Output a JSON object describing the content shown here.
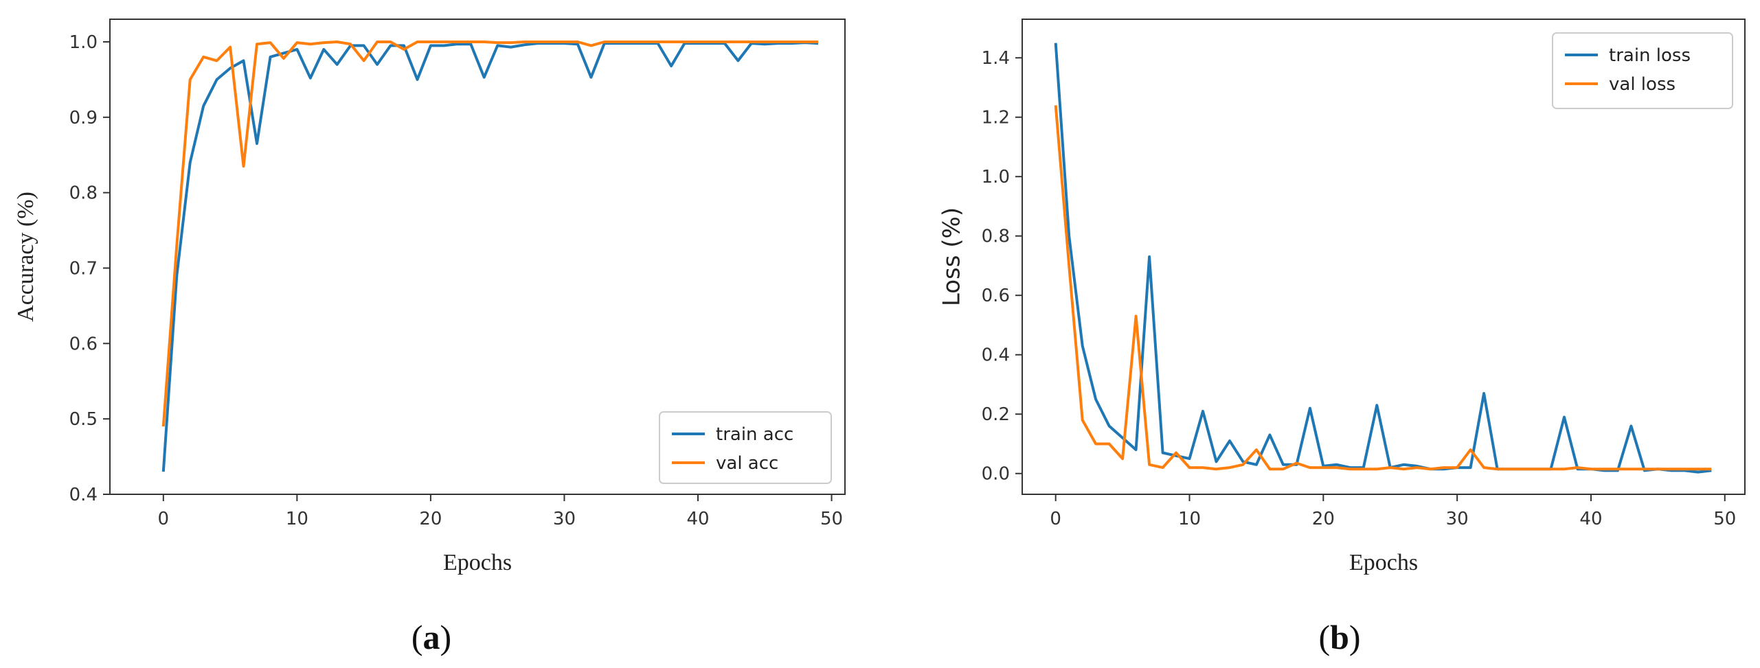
{
  "charts": [
    {
      "panel_label": "(a)",
      "panel_letter": "a",
      "chart_data": {
        "type": "line",
        "title": "",
        "xlabel": "Epochs",
        "ylabel": "Accuracy (%)",
        "xlim": [
          -4,
          51
        ],
        "ylim": [
          0.4,
          1.03
        ],
        "xticks": [
          0,
          10,
          20,
          30,
          40,
          50
        ],
        "yticks": [
          0.4,
          0.5,
          0.6,
          0.7,
          0.8,
          0.9,
          1.0
        ],
        "ytick_labels": [
          "0.4",
          "0.5",
          "0.6",
          "0.7",
          "0.8",
          "0.9",
          "1.0"
        ],
        "grid": false,
        "legend": "lower right",
        "x": [
          0,
          1,
          2,
          3,
          4,
          5,
          6,
          7,
          8,
          9,
          10,
          11,
          12,
          13,
          14,
          15,
          16,
          17,
          18,
          19,
          20,
          21,
          22,
          23,
          24,
          25,
          26,
          27,
          28,
          29,
          30,
          31,
          32,
          33,
          34,
          35,
          36,
          37,
          38,
          39,
          40,
          41,
          42,
          43,
          44,
          45,
          46,
          47,
          48,
          49
        ],
        "series": [
          {
            "name": "train acc",
            "color": "#1f77b4",
            "values": [
              0.43,
              0.69,
              0.84,
              0.915,
              0.95,
              0.965,
              0.975,
              0.865,
              0.98,
              0.985,
              0.99,
              0.952,
              0.99,
              0.97,
              0.995,
              0.995,
              0.97,
              0.995,
              0.995,
              0.95,
              0.995,
              0.995,
              0.997,
              0.997,
              0.953,
              0.995,
              0.993,
              0.996,
              0.998,
              0.998,
              0.998,
              0.997,
              0.953,
              0.998,
              0.998,
              0.998,
              0.998,
              0.998,
              0.968,
              0.998,
              0.998,
              0.998,
              0.998,
              0.975,
              0.998,
              0.997,
              0.998,
              0.998,
              0.999,
              0.998
            ]
          },
          {
            "name": "val acc",
            "color": "#ff7f0e",
            "values": [
              0.49,
              0.73,
              0.95,
              0.98,
              0.975,
              0.993,
              0.835,
              0.997,
              0.999,
              0.978,
              0.999,
              0.997,
              0.999,
              1.0,
              0.997,
              0.975,
              1.0,
              1.0,
              0.99,
              1.0,
              1.0,
              1.0,
              1.0,
              1.0,
              1.0,
              0.999,
              0.999,
              1.0,
              1.0,
              1.0,
              1.0,
              1.0,
              0.995,
              1.0,
              1.0,
              1.0,
              1.0,
              1.0,
              1.0,
              1.0,
              1.0,
              1.0,
              1.0,
              1.0,
              1.0,
              1.0,
              1.0,
              1.0,
              1.0,
              1.0
            ]
          }
        ]
      }
    },
    {
      "panel_label": "(b)",
      "panel_letter": "b",
      "chart_data": {
        "type": "line",
        "title": "",
        "xlabel": "Epochs",
        "ylabel": "Loss (%)",
        "xlim": [
          -2.5,
          51.5
        ],
        "ylim": [
          -0.07,
          1.53
        ],
        "xticks": [
          0,
          10,
          20,
          30,
          40,
          50
        ],
        "yticks": [
          0.0,
          0.2,
          0.4,
          0.6,
          0.8,
          1.0,
          1.2,
          1.4
        ],
        "ytick_labels": [
          "0.0",
          "0.2",
          "0.4",
          "0.6",
          "0.8",
          "1.0",
          "1.2",
          "1.4"
        ],
        "grid": false,
        "legend": "upper right",
        "x": [
          0,
          1,
          2,
          3,
          4,
          5,
          6,
          7,
          8,
          9,
          10,
          11,
          12,
          13,
          14,
          15,
          16,
          17,
          18,
          19,
          20,
          21,
          22,
          23,
          24,
          25,
          26,
          27,
          28,
          29,
          30,
          31,
          32,
          33,
          34,
          35,
          36,
          37,
          38,
          39,
          40,
          41,
          42,
          43,
          44,
          45,
          46,
          47,
          48,
          49
        ],
        "series": [
          {
            "name": "train loss",
            "color": "#1f77b4",
            "values": [
              1.45,
              0.8,
              0.43,
              0.25,
              0.16,
              0.12,
              0.08,
              0.73,
              0.07,
              0.06,
              0.05,
              0.21,
              0.04,
              0.11,
              0.04,
              0.03,
              0.13,
              0.03,
              0.03,
              0.22,
              0.025,
              0.03,
              0.02,
              0.02,
              0.23,
              0.02,
              0.03,
              0.025,
              0.015,
              0.015,
              0.02,
              0.02,
              0.27,
              0.015,
              0.015,
              0.015,
              0.015,
              0.015,
              0.19,
              0.015,
              0.015,
              0.01,
              0.01,
              0.16,
              0.01,
              0.015,
              0.01,
              0.01,
              0.005,
              0.01
            ]
          },
          {
            "name": "val loss",
            "color": "#ff7f0e",
            "values": [
              1.24,
              0.7,
              0.18,
              0.1,
              0.1,
              0.05,
              0.53,
              0.03,
              0.02,
              0.07,
              0.02,
              0.02,
              0.015,
              0.02,
              0.03,
              0.08,
              0.015,
              0.015,
              0.035,
              0.02,
              0.02,
              0.02,
              0.015,
              0.015,
              0.015,
              0.02,
              0.015,
              0.02,
              0.015,
              0.02,
              0.02,
              0.08,
              0.02,
              0.015,
              0.015,
              0.015,
              0.015,
              0.015,
              0.015,
              0.02,
              0.015,
              0.015,
              0.015,
              0.015,
              0.015,
              0.015,
              0.015,
              0.015,
              0.015,
              0.015
            ]
          }
        ]
      }
    }
  ]
}
